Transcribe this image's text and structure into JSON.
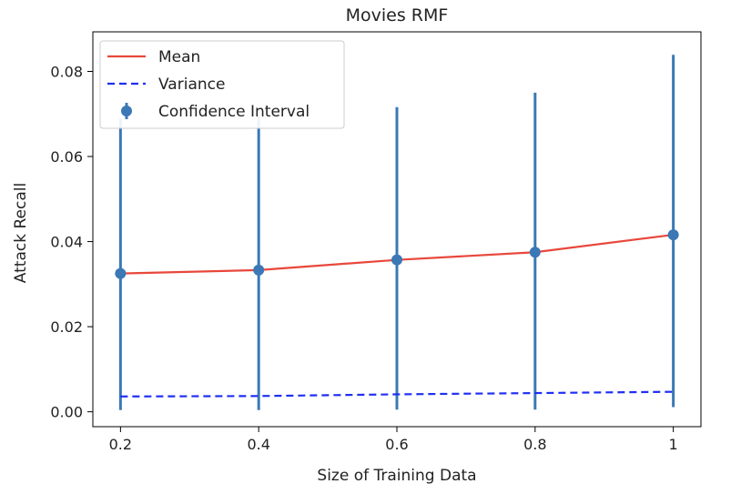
{
  "chart_data": {
    "type": "line",
    "title": "Movies RMF",
    "xlabel": "Size of Training Data",
    "ylabel": "Attack Recall",
    "x": [
      0.2,
      0.4,
      0.6,
      0.8,
      1.0
    ],
    "x_tick_labels": [
      "0.2",
      "0.4",
      "0.6",
      "0.8",
      "1"
    ],
    "y_ticks": [
      0.0,
      0.02,
      0.04,
      0.06,
      0.08
    ],
    "y_tick_labels": [
      "0.00",
      "0.02",
      "0.04",
      "0.06",
      "0.08"
    ],
    "xlim": [
      0.16,
      1.04
    ],
    "ylim": [
      -0.0035,
      0.0893
    ],
    "grid": false,
    "legend_position": "top-left",
    "series": [
      {
        "name": "Mean",
        "kind": "line",
        "style": "solid",
        "color": "#e8473b",
        "values": [
          0.0325,
          0.0333,
          0.0357,
          0.0375,
          0.0416
        ]
      },
      {
        "name": "Variance",
        "kind": "line",
        "style": "dashed",
        "color": "#1f2ff2",
        "values": [
          0.0036,
          0.0037,
          0.0041,
          0.0044,
          0.0047
        ]
      },
      {
        "name": "Confidence Interval",
        "kind": "errorbar",
        "color": "#3b78b5",
        "values": [
          0.0325,
          0.0333,
          0.0357,
          0.0375,
          0.0416
        ],
        "lower": [
          0.0004,
          0.0004,
          0.0005,
          0.0005,
          0.0011
        ],
        "upper": [
          0.0689,
          0.0695,
          0.0716,
          0.075,
          0.0839
        ]
      }
    ]
  }
}
